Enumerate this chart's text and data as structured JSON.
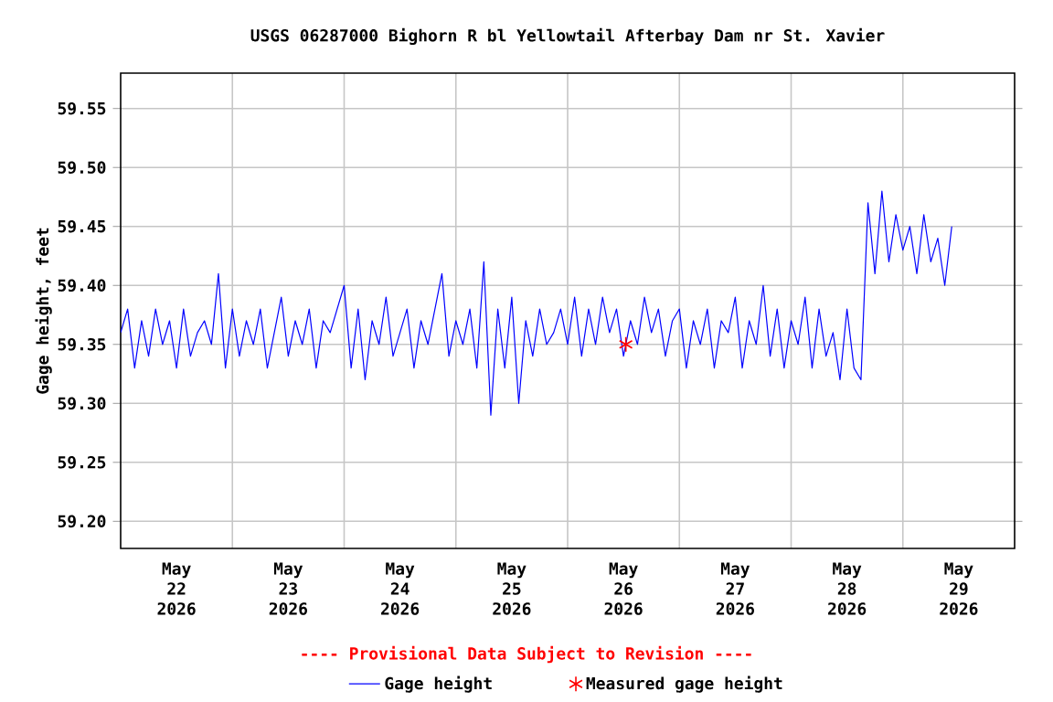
{
  "chart_data": {
    "type": "line",
    "title": "USGS 06287000 Bighorn R bl Yellowtail Afterbay Dam nr St. Xavier",
    "ylabel": "Gage height, feet",
    "annotations": [
      "---- Provisional Data Subject to Revision ----"
    ],
    "xlim": [
      "2026-05-22",
      "2026-05-30"
    ],
    "ylim": [
      59.177,
      59.58
    ],
    "yticks": [
      {
        "value": 59.2,
        "label": "59.20"
      },
      59.25,
      {
        "value": 59.3,
        "label": "59.30"
      },
      59.35,
      {
        "value": 59.4,
        "label": "59.40"
      },
      59.45,
      {
        "value": 59.5,
        "label": "59.50"
      },
      59.55
    ],
    "xticks": [
      {
        "value": "2026-05-22T12:00",
        "label": "May 22 2026"
      },
      {
        "value": "2026-05-23T12:00",
        "label": "May 23 2026"
      },
      {
        "value": "2026-05-24T12:00",
        "label": "May 24 2026"
      },
      {
        "value": "2026-05-25T12:00",
        "label": "May 25 2026"
      },
      {
        "value": "2026-05-26T12:00",
        "label": "May 26 2026"
      },
      {
        "value": "2026-05-27T12:00",
        "label": "May 27 2026"
      },
      {
        "value": "2026-05-28T12:00",
        "label": "May 28 2026"
      },
      {
        "value": "2026-05-29T12:00",
        "label": "May 29 2026"
      },
      {
        "value": "2026-05-23",
        "label": null
      },
      {
        "value": "2026-05-24",
        "label": null
      },
      {
        "value": "2026-05-25",
        "label": null
      },
      {
        "value": "2026-05-26",
        "label": null
      },
      {
        "value": "2026-05-27",
        "label": null
      },
      {
        "value": "2026-05-28",
        "label": null
      },
      {
        "value": "2026-05-29",
        "label": null
      }
    ],
    "grid": true,
    "legend": "bottom",
    "series": [
      {
        "name": "Gage height",
        "color": "#0000ff",
        "marker": "none",
        "line_style": "solid",
        "x": [
          "2026-05-22T00:00",
          "2026-05-22T01:30",
          "2026-05-22T03:00",
          "2026-05-22T04:30",
          "2026-05-22T06:00",
          "2026-05-22T07:30",
          "2026-05-22T09:00",
          "2026-05-22T10:30",
          "2026-05-22T12:00",
          "2026-05-22T13:30",
          "2026-05-22T15:00",
          "2026-05-22T16:30",
          "2026-05-22T18:00",
          "2026-05-22T19:30",
          "2026-05-22T21:00",
          "2026-05-22T22:30",
          "2026-05-23T00:00",
          "2026-05-23T01:30",
          "2026-05-23T03:00",
          "2026-05-23T04:30",
          "2026-05-23T06:00",
          "2026-05-23T07:30",
          "2026-05-23T09:00",
          "2026-05-23T10:30",
          "2026-05-23T12:00",
          "2026-05-23T13:30",
          "2026-05-23T15:00",
          "2026-05-23T16:30",
          "2026-05-23T18:00",
          "2026-05-23T19:30",
          "2026-05-23T21:00",
          "2026-05-23T22:30",
          "2026-05-24T00:00",
          "2026-05-24T01:30",
          "2026-05-24T03:00",
          "2026-05-24T04:30",
          "2026-05-24T06:00",
          "2026-05-24T07:30",
          "2026-05-24T09:00",
          "2026-05-24T10:30",
          "2026-05-24T12:00",
          "2026-05-24T13:30",
          "2026-05-24T15:00",
          "2026-05-24T16:30",
          "2026-05-24T18:00",
          "2026-05-24T19:30",
          "2026-05-24T21:00",
          "2026-05-24T22:30",
          "2026-05-25T00:00",
          "2026-05-25T01:30",
          "2026-05-25T03:00",
          "2026-05-25T04:30",
          "2026-05-25T06:00",
          "2026-05-25T07:30",
          "2026-05-25T09:00",
          "2026-05-25T10:30",
          "2026-05-25T12:00",
          "2026-05-25T13:30",
          "2026-05-25T15:00",
          "2026-05-25T16:30",
          "2026-05-25T18:00",
          "2026-05-25T19:30",
          "2026-05-25T21:00",
          "2026-05-25T22:30",
          "2026-05-26T00:00",
          "2026-05-26T01:30",
          "2026-05-26T03:00",
          "2026-05-26T04:30",
          "2026-05-26T06:00",
          "2026-05-26T07:30",
          "2026-05-26T09:00",
          "2026-05-26T10:30",
          "2026-05-26T12:00",
          "2026-05-26T13:30",
          "2026-05-26T15:00",
          "2026-05-26T16:30",
          "2026-05-26T18:00",
          "2026-05-26T19:30",
          "2026-05-26T21:00",
          "2026-05-26T22:30",
          "2026-05-27T00:00",
          "2026-05-27T01:30",
          "2026-05-27T03:00",
          "2026-05-27T04:30",
          "2026-05-27T06:00",
          "2026-05-27T07:30",
          "2026-05-27T09:00",
          "2026-05-27T10:30",
          "2026-05-27T12:00",
          "2026-05-27T13:30",
          "2026-05-27T15:00",
          "2026-05-27T16:30",
          "2026-05-27T18:00",
          "2026-05-27T19:30",
          "2026-05-27T21:00",
          "2026-05-27T22:30",
          "2026-05-28T00:00",
          "2026-05-28T01:30",
          "2026-05-28T03:00",
          "2026-05-28T04:30",
          "2026-05-28T06:00",
          "2026-05-28T07:30",
          "2026-05-28T09:00",
          "2026-05-28T10:30",
          "2026-05-28T12:00",
          "2026-05-28T13:30",
          "2026-05-28T15:00",
          "2026-05-28T16:30",
          "2026-05-28T18:00",
          "2026-05-28T19:30",
          "2026-05-28T21:00",
          "2026-05-28T22:30",
          "2026-05-29T00:00",
          "2026-05-29T01:30",
          "2026-05-29T03:00",
          "2026-05-29T04:30",
          "2026-05-29T06:00",
          "2026-05-29T07:30",
          "2026-05-29T09:00",
          "2026-05-29T10:30"
        ],
        "values": [
          59.36,
          59.38,
          59.33,
          59.37,
          59.34,
          59.38,
          59.35,
          59.37,
          59.33,
          59.38,
          59.34,
          59.36,
          59.37,
          59.35,
          59.41,
          59.33,
          59.38,
          59.34,
          59.37,
          59.35,
          59.38,
          59.33,
          59.36,
          59.39,
          59.34,
          59.37,
          59.35,
          59.38,
          59.33,
          59.37,
          59.36,
          59.38,
          59.4,
          59.33,
          59.38,
          59.32,
          59.37,
          59.35,
          59.39,
          59.34,
          59.36,
          59.38,
          59.33,
          59.37,
          59.35,
          59.38,
          59.41,
          59.34,
          59.37,
          59.35,
          59.38,
          59.33,
          59.42,
          59.29,
          59.38,
          59.33,
          59.39,
          59.3,
          59.37,
          59.34,
          59.38,
          59.35,
          59.36,
          59.38,
          59.35,
          59.39,
          59.34,
          59.38,
          59.35,
          59.39,
          59.36,
          59.38,
          59.34,
          59.37,
          59.35,
          59.39,
          59.36,
          59.38,
          59.34,
          59.37,
          59.38,
          59.33,
          59.37,
          59.35,
          59.38,
          59.33,
          59.37,
          59.36,
          59.39,
          59.33,
          59.37,
          59.35,
          59.4,
          59.34,
          59.38,
          59.33,
          59.37,
          59.35,
          59.39,
          59.33,
          59.38,
          59.34,
          59.36,
          59.32,
          59.38,
          59.33,
          59.32,
          59.47,
          59.41,
          59.48,
          59.42,
          59.46,
          59.43,
          59.45,
          59.41,
          59.46,
          59.42,
          59.44,
          59.4,
          59.45
        ]
      },
      {
        "name": "Measured gage height",
        "color": "#ff0000",
        "type": "scatter",
        "marker": "cross",
        "x": [
          "2026-05-26T12:30"
        ],
        "values": [
          59.35
        ]
      }
    ]
  }
}
